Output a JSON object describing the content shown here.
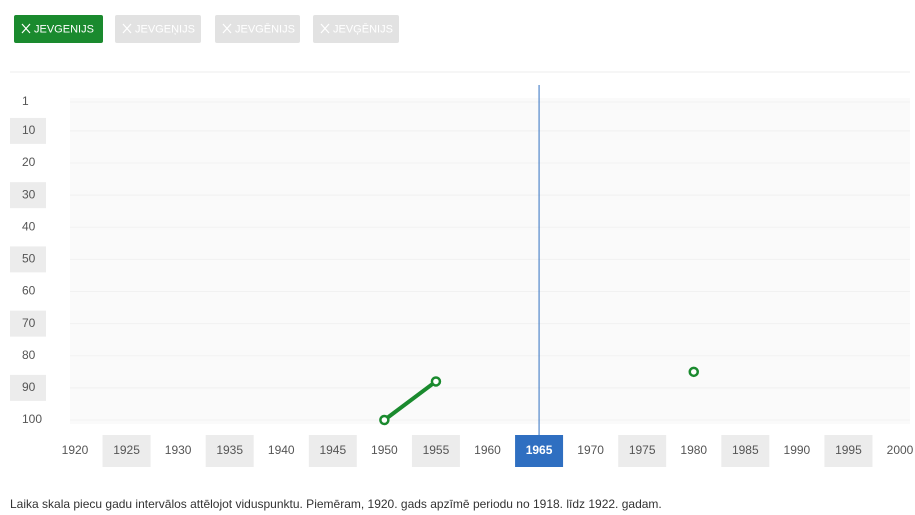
{
  "buttons": [
    {
      "label": "JEVGENIJS",
      "active": true
    },
    {
      "label": "JEVGEŅIJS",
      "active": false
    },
    {
      "label": "JEVGĒNIJS",
      "active": false
    },
    {
      "label": "JEVĢĒNIJS",
      "active": false
    }
  ],
  "chart_data": {
    "type": "line",
    "x": [
      1920,
      1925,
      1930,
      1935,
      1940,
      1945,
      1950,
      1955,
      1960,
      1965,
      1970,
      1975,
      1980,
      1985,
      1990,
      1995,
      2000
    ],
    "series": [
      {
        "name": "JEVGENIJS",
        "color": "#1a8a2e",
        "values": [
          null,
          null,
          null,
          null,
          null,
          null,
          100,
          88,
          null,
          null,
          null,
          null,
          85,
          null,
          null,
          null,
          null
        ]
      }
    ],
    "xlim": [
      1920,
      2000
    ],
    "xticks": [
      1920,
      1925,
      1930,
      1935,
      1940,
      1945,
      1950,
      1955,
      1960,
      1965,
      1970,
      1975,
      1980,
      1985,
      1990,
      1995,
      2000
    ],
    "ylim": [
      1,
      100
    ],
    "y_inverted": true,
    "yticks": [
      1,
      10,
      20,
      30,
      40,
      50,
      60,
      70,
      80,
      90,
      100
    ],
    "selected_x": 1965,
    "selected_color": "#2f6fc1"
  },
  "caption": "Laika skala piecu gadu intervālos attēlojot viduspunktu. Piemēram, 1920. gads apzīmē periodu no 1918. līdz 1922. gadam."
}
